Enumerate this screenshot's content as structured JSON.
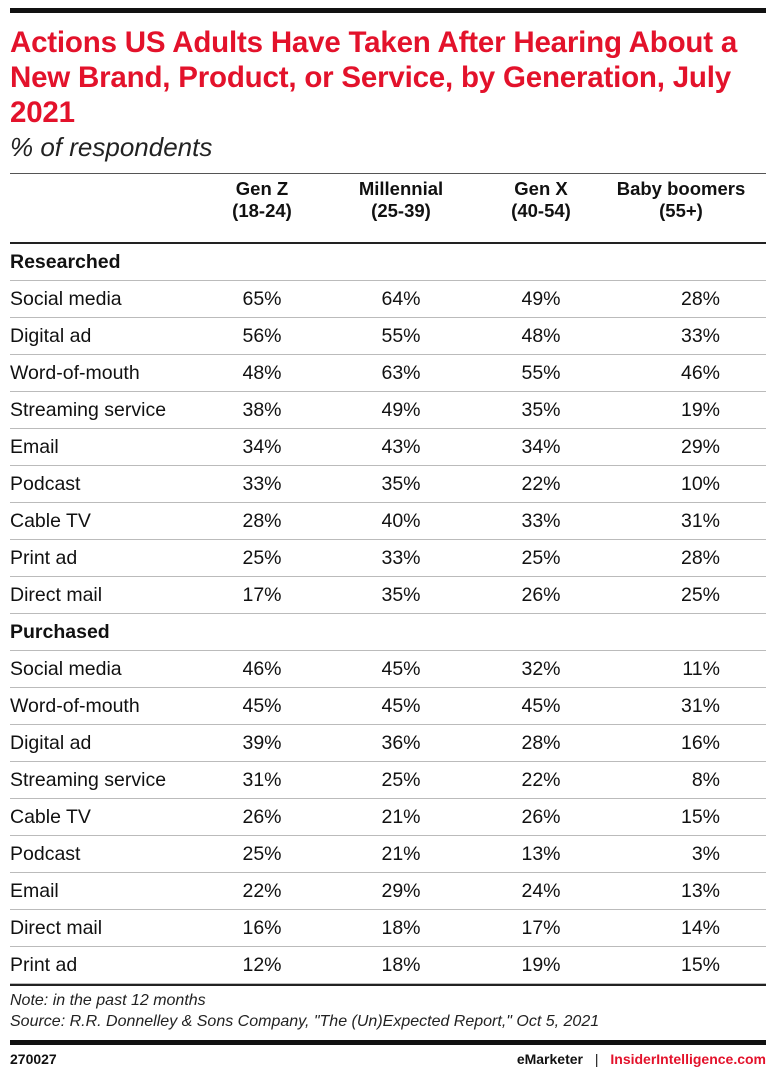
{
  "chart_data": {
    "type": "table",
    "title": "Actions US Adults Have Taken After Hearing About a New Brand, Product, or Service, by Generation, July 2021",
    "subtitle": "% of respondents",
    "columns": [
      {
        "name": "Gen Z",
        "range": "(18-24)"
      },
      {
        "name": "Millennial",
        "range": "(25-39)"
      },
      {
        "name": "Gen X",
        "range": "(40-54)"
      },
      {
        "name": "Baby boomers",
        "range": "(55+)"
      }
    ],
    "sections": [
      {
        "name": "Researched",
        "rows": [
          {
            "label": "Social media",
            "values": [
              "65%",
              "64%",
              "49%",
              "28%"
            ]
          },
          {
            "label": "Digital ad",
            "values": [
              "56%",
              "55%",
              "48%",
              "33%"
            ]
          },
          {
            "label": "Word-of-mouth",
            "values": [
              "48%",
              "63%",
              "55%",
              "46%"
            ]
          },
          {
            "label": "Streaming service",
            "values": [
              "38%",
              "49%",
              "35%",
              "19%"
            ]
          },
          {
            "label": "Email",
            "values": [
              "34%",
              "43%",
              "34%",
              "29%"
            ]
          },
          {
            "label": "Podcast",
            "values": [
              "33%",
              "35%",
              "22%",
              "10%"
            ]
          },
          {
            "label": "Cable TV",
            "values": [
              "28%",
              "40%",
              "33%",
              "31%"
            ]
          },
          {
            "label": "Print ad",
            "values": [
              "25%",
              "33%",
              "25%",
              "28%"
            ]
          },
          {
            "label": "Direct mail",
            "values": [
              "17%",
              "35%",
              "26%",
              "25%"
            ]
          }
        ]
      },
      {
        "name": "Purchased",
        "rows": [
          {
            "label": "Social media",
            "values": [
              "46%",
              "45%",
              "32%",
              "11%"
            ]
          },
          {
            "label": "Word-of-mouth",
            "values": [
              "45%",
              "45%",
              "45%",
              "31%"
            ]
          },
          {
            "label": "Digital ad",
            "values": [
              "39%",
              "36%",
              "28%",
              "16%"
            ]
          },
          {
            "label": "Streaming service",
            "values": [
              "31%",
              "25%",
              "22%",
              "8%"
            ]
          },
          {
            "label": "Cable TV",
            "values": [
              "26%",
              "21%",
              "26%",
              "15%"
            ]
          },
          {
            "label": "Podcast",
            "values": [
              "25%",
              "21%",
              "13%",
              "3%"
            ]
          },
          {
            "label": "Email",
            "values": [
              "22%",
              "29%",
              "24%",
              "13%"
            ]
          },
          {
            "label": "Direct mail",
            "values": [
              "16%",
              "18%",
              "17%",
              "14%"
            ]
          },
          {
            "label": "Print ad",
            "values": [
              "12%",
              "18%",
              "19%",
              "15%"
            ]
          }
        ]
      }
    ],
    "note": "Note: in the past 12 months",
    "source": "Source: R.R. Donnelley & Sons Company, \"The (Un)Expected Report,\" Oct 5, 2021"
  },
  "footer": {
    "chart_id": "270027",
    "brand_left": "eMarketer",
    "separator": "|",
    "brand_right": "InsiderIntelligence.com"
  },
  "colors": {
    "accent": "#e3122b",
    "text": "#111111"
  }
}
